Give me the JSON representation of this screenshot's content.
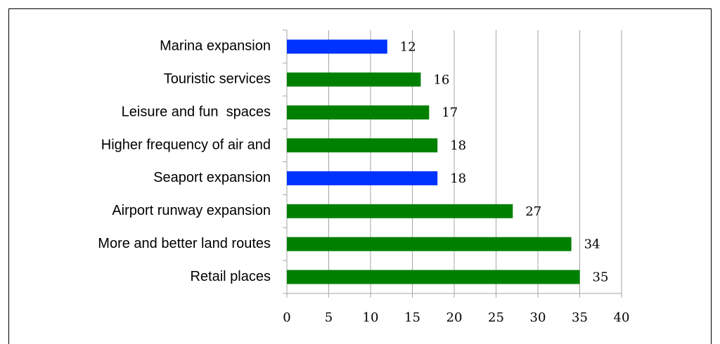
{
  "chart_data": {
    "type": "hbar",
    "categories": [
      "Marina expansion",
      "Touristic services",
      "Leisure and fun  spaces",
      "Higher frequency of air and",
      "Seaport expansion",
      "Airport runway expansion",
      "More and better land routes",
      "Retail places"
    ],
    "values": [
      12,
      16,
      17,
      18,
      18,
      27,
      34,
      35
    ],
    "colors": [
      "#0033ff",
      "#008000",
      "#008000",
      "#008000",
      "#0033ff",
      "#008000",
      "#008000",
      "#008000"
    ],
    "xlim": [
      0,
      40
    ],
    "xticks": [
      0,
      5,
      10,
      15,
      20,
      25,
      30,
      35,
      40
    ],
    "grid": true
  }
}
